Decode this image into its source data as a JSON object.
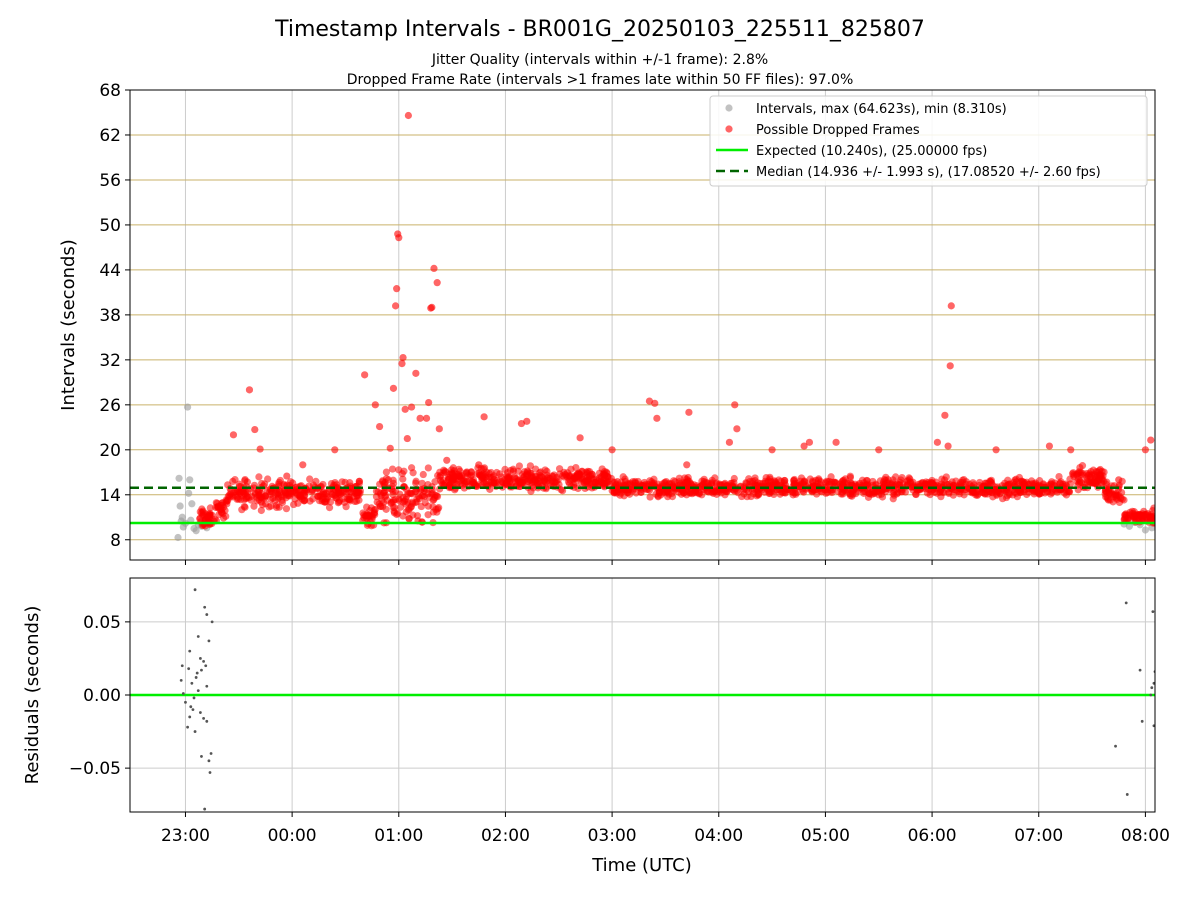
{
  "title": "Timestamp Intervals - BR001G_20250103_225511_825807",
  "subtitle_1": "Jitter Quality (intervals within +/-1 frame): 2.8%",
  "subtitle_2": "Dropped Frame Rate (intervals >1 frames late within 50 FF files): 97.0%",
  "colors": {
    "intervals": "#999999",
    "dropped": "#ff0000",
    "expected": "#00ee00",
    "median": "#006400",
    "residuals": "#555555",
    "hgrid_top": "#c9b26a",
    "grid": "#cccccc"
  },
  "chart_data": [
    {
      "type": "scatter",
      "panel": "top",
      "xlabel": "",
      "ylabel": "Intervals (seconds)",
      "ylim": [
        5.3,
        68
      ],
      "yticks": [
        8,
        14,
        20,
        26,
        32,
        38,
        44,
        50,
        56,
        62,
        68
      ],
      "ytick_labels": [
        "8",
        "14",
        "20",
        "26",
        "32",
        "38",
        "44",
        "50",
        "56",
        "62",
        "68"
      ],
      "xlim_hours": [
        22.48,
        32.09
      ],
      "xticks_hours": [
        23,
        24,
        25,
        26,
        27,
        28,
        29,
        30,
        31,
        32
      ],
      "hgrid": true,
      "vgrid": true,
      "legend_position": "top-right",
      "legend": [
        "Intervals, max (64.623s), min (8.310s)",
        "Possible Dropped Frames",
        "Expected (10.240s), (25.00000 fps)",
        "Median (14.936 +/- 1.993 s), (17.08520 +/- 2.60 fps)"
      ],
      "expected_value": 10.24,
      "median_value": 14.936,
      "intervals_points": [
        [
          22.93,
          8.3
        ],
        [
          22.94,
          16.2
        ],
        [
          22.95,
          12.5
        ],
        [
          22.96,
          10.5
        ],
        [
          22.97,
          11.0
        ],
        [
          22.98,
          9.7
        ],
        [
          23.0,
          10.2
        ],
        [
          23.02,
          25.7
        ],
        [
          23.03,
          14.2
        ],
        [
          23.04,
          16.0
        ],
        [
          23.05,
          10.6
        ],
        [
          23.06,
          12.8
        ],
        [
          23.08,
          9.5
        ],
        [
          23.1,
          9.2
        ],
        [
          23.12,
          10.0
        ],
        [
          23.15,
          9.8
        ],
        [
          23.18,
          10.4
        ],
        [
          23.2,
          9.6
        ],
        [
          23.22,
          10.1
        ],
        [
          31.8,
          10.1
        ],
        [
          31.85,
          9.8
        ],
        [
          31.9,
          10.3
        ],
        [
          31.95,
          10.0
        ],
        [
          32.0,
          9.3
        ],
        [
          32.03,
          10.8
        ],
        [
          32.06,
          9.6
        ]
      ],
      "dropped_outliers": [
        [
          23.45,
          22.0
        ],
        [
          23.6,
          28.0
        ],
        [
          23.65,
          22.7
        ],
        [
          23.7,
          20.1
        ],
        [
          23.95,
          16.5
        ],
        [
          24.1,
          18.0
        ],
        [
          24.4,
          20.0
        ],
        [
          24.68,
          30.0
        ],
        [
          24.78,
          26.0
        ],
        [
          24.82,
          23.1
        ],
        [
          24.92,
          20.2
        ],
        [
          24.95,
          28.2
        ],
        [
          24.97,
          39.2
        ],
        [
          24.98,
          41.5
        ],
        [
          24.99,
          48.8
        ],
        [
          25.0,
          48.3
        ],
        [
          25.03,
          31.5
        ],
        [
          25.04,
          32.3
        ],
        [
          25.06,
          25.4
        ],
        [
          25.08,
          21.5
        ],
        [
          25.09,
          64.6
        ],
        [
          25.12,
          25.7
        ],
        [
          25.16,
          30.2
        ],
        [
          25.2,
          24.2
        ],
        [
          25.26,
          24.2
        ],
        [
          25.28,
          26.3
        ],
        [
          25.3,
          38.9
        ],
        [
          25.31,
          39.0
        ],
        [
          25.33,
          44.2
        ],
        [
          25.36,
          42.3
        ],
        [
          25.38,
          22.8
        ],
        [
          25.45,
          18.6
        ],
        [
          25.75,
          18.0
        ],
        [
          25.8,
          24.4
        ],
        [
          26.15,
          23.5
        ],
        [
          26.2,
          23.8
        ],
        [
          26.7,
          21.6
        ],
        [
          27.0,
          20.0
        ],
        [
          27.35,
          26.5
        ],
        [
          27.4,
          26.2
        ],
        [
          27.42,
          24.2
        ],
        [
          27.7,
          18.0
        ],
        [
          27.72,
          25.0
        ],
        [
          28.1,
          21.0
        ],
        [
          28.15,
          26.0
        ],
        [
          28.17,
          22.8
        ],
        [
          28.5,
          20.0
        ],
        [
          28.8,
          20.5
        ],
        [
          28.85,
          21.0
        ],
        [
          29.1,
          21.0
        ],
        [
          29.5,
          20.0
        ],
        [
          30.05,
          21.0
        ],
        [
          30.12,
          24.6
        ],
        [
          30.15,
          20.5
        ],
        [
          30.17,
          31.2
        ],
        [
          30.18,
          39.2
        ],
        [
          30.6,
          20.0
        ],
        [
          31.1,
          20.5
        ],
        [
          31.3,
          20.0
        ],
        [
          31.75,
          16.0
        ],
        [
          32.0,
          20.0
        ],
        [
          32.05,
          21.3
        ]
      ],
      "dropped_bands": [
        {
          "x": [
            23.12,
            23.28
          ],
          "center": 10.8,
          "spread": 1.0
        },
        {
          "x": [
            23.28,
            23.38
          ],
          "center": 12.0,
          "spread": 1.0
        },
        {
          "x": [
            23.38,
            24.0
          ],
          "center": 14.2,
          "spread": 1.4
        },
        {
          "x": [
            24.0,
            24.65
          ],
          "center": 14.3,
          "spread": 1.2
        },
        {
          "x": [
            24.65,
            24.78
          ],
          "center": 11.2,
          "spread": 0.9
        },
        {
          "x": [
            24.78,
            25.38
          ],
          "center": 13.8,
          "spread": 2.5
        },
        {
          "x": [
            25.38,
            27.0
          ],
          "center": 16.0,
          "spread": 1.1
        },
        {
          "x": [
            27.0,
            31.3
          ],
          "center": 15.0,
          "spread": 0.9
        },
        {
          "x": [
            31.3,
            31.62
          ],
          "center": 16.2,
          "spread": 1.0
        },
        {
          "x": [
            31.62,
            31.8
          ],
          "center": 14.2,
          "spread": 1.0
        },
        {
          "x": [
            31.8,
            32.09
          ],
          "center": 11.0,
          "spread": 0.8
        }
      ]
    },
    {
      "type": "scatter",
      "panel": "bottom",
      "xlabel": "Time (UTC)",
      "ylabel": "Residuals (seconds)",
      "ylim": [
        -0.08,
        0.08
      ],
      "yticks": [
        0.05,
        0.0,
        -0.05
      ],
      "ytick_labels": [
        "0.05",
        "0.00",
        "−0.05"
      ],
      "xlim_hours": [
        22.48,
        32.09
      ],
      "xticks_hours": [
        23,
        24,
        25,
        26,
        27,
        28,
        29,
        30,
        31,
        32
      ],
      "xtick_labels": [
        "23:00",
        "00:00",
        "01:00",
        "02:00",
        "03:00",
        "04:00",
        "05:00",
        "06:00",
        "07:00",
        "08:00"
      ],
      "zero_line": 0.0,
      "hgrid": true,
      "vgrid": true,
      "points": [
        [
          23.09,
          0.072
        ],
        [
          23.18,
          0.06
        ],
        [
          23.2,
          0.055
        ],
        [
          23.25,
          0.05
        ],
        [
          23.12,
          0.04
        ],
        [
          23.22,
          0.037
        ],
        [
          23.04,
          0.03
        ],
        [
          23.14,
          0.025
        ],
        [
          23.17,
          0.023
        ],
        [
          22.97,
          0.02
        ],
        [
          23.03,
          0.018
        ],
        [
          23.15,
          0.017
        ],
        [
          23.1,
          0.012
        ],
        [
          22.96,
          0.01
        ],
        [
          23.06,
          0.008
        ],
        [
          23.2,
          0.006
        ],
        [
          23.12,
          0.003
        ],
        [
          22.98,
          0.001
        ],
        [
          23.08,
          -0.002
        ],
        [
          23.0,
          -0.005
        ],
        [
          23.05,
          -0.008
        ],
        [
          23.14,
          -0.012
        ],
        [
          23.04,
          -0.015
        ],
        [
          23.17,
          -0.016
        ],
        [
          23.2,
          -0.018
        ],
        [
          23.02,
          -0.022
        ],
        [
          23.09,
          -0.025
        ],
        [
          23.24,
          -0.04
        ],
        [
          23.15,
          -0.042
        ],
        [
          23.22,
          -0.045
        ],
        [
          23.23,
          -0.053
        ],
        [
          23.18,
          -0.078
        ],
        [
          23.11,
          0.015
        ],
        [
          23.19,
          0.02
        ],
        [
          23.07,
          -0.01
        ],
        [
          31.82,
          0.063
        ],
        [
          31.95,
          0.017
        ],
        [
          32.07,
          0.057
        ],
        [
          32.09,
          0.016
        ],
        [
          32.08,
          0.008
        ],
        [
          32.06,
          0.005
        ],
        [
          32.05,
          0.0
        ],
        [
          31.72,
          -0.035
        ],
        [
          31.97,
          -0.018
        ],
        [
          32.08,
          -0.021
        ],
        [
          31.83,
          -0.068
        ]
      ]
    }
  ]
}
